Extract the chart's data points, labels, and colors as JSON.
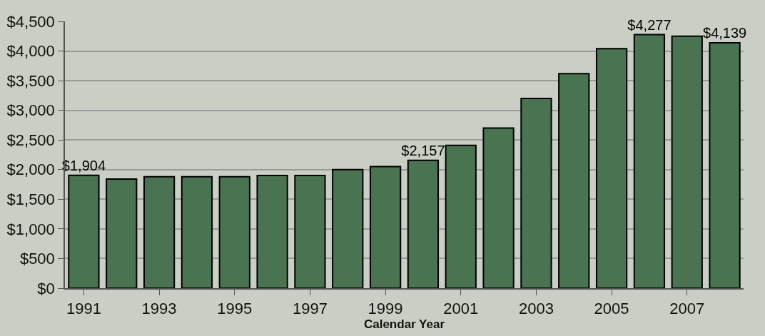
{
  "chart_data": {
    "type": "bar",
    "xlabel": "Calendar Year",
    "categories": [
      "1991",
      null,
      "1993",
      null,
      "1995",
      null,
      "1997",
      null,
      "1999",
      null,
      "2001",
      null,
      "2003",
      null,
      "2005",
      null,
      "2007",
      null
    ],
    "values": [
      1904,
      1840,
      1880,
      1880,
      1880,
      1900,
      1900,
      2000,
      2050,
      2157,
      2410,
      2700,
      3200,
      3620,
      4040,
      4277,
      4250,
      4139
    ],
    "value_labels": [
      "$1,904",
      null,
      null,
      null,
      null,
      null,
      null,
      null,
      null,
      "$2,157",
      null,
      null,
      null,
      null,
      null,
      "$4,277",
      null,
      "$4,139"
    ],
    "color": "#4a7352",
    "ylim": [
      0,
      4500
    ],
    "yticks": [
      {
        "value": 0,
        "label": "$0"
      },
      {
        "value": 500,
        "label": "$500"
      },
      {
        "value": 1000,
        "label": "$1,000"
      },
      {
        "value": 1500,
        "label": "$1,500"
      },
      {
        "value": 2000,
        "label": "$2,000"
      },
      {
        "value": 2500,
        "label": "$2,500"
      },
      {
        "value": 3000,
        "label": "$3,000"
      },
      {
        "value": 3500,
        "label": "$3,500"
      },
      {
        "value": 4000,
        "label": "$4,000"
      },
      {
        "value": 4500,
        "label": "$4,500"
      }
    ],
    "grid": "y"
  }
}
